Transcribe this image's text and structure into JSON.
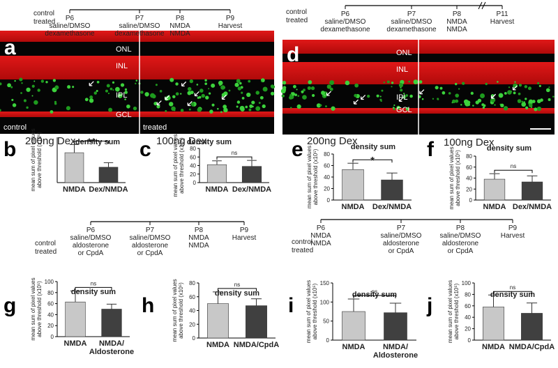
{
  "timelines": [
    {
      "groups": "control\ntreated",
      "steps": [
        "P6\nsaline/DMSO\ndexamethasone",
        "P7\nsaline/DMSO\ndexamethasone",
        "P8\nNMDA\nNMDA",
        "P9\nHarvest"
      ]
    },
    {
      "groups": "control\ntreated",
      "steps": [
        "P6\nsaline/DMSO\ndexamethasone",
        "P7\nsaline/DMSO\ndexamethasone",
        "P8\nNMDA\nNMDA",
        "P11\nHarvest"
      ]
    },
    {
      "groups": "control\ntreated",
      "steps": [
        "P6\nsaline/DMSO\naldosterone\nor CpdA",
        "P7\nsaline/DMSO\naldosterone\nor CpdA",
        "P8\nNMDA\nNMDA",
        "P9\nHarvest"
      ]
    },
    {
      "groups": "control\ntreated",
      "steps": [
        "P6\nNMDA\nNMDA",
        "P7\nsaline/DMSO\naldosterone\nor CpdA",
        "P8\nsaline/DMSO\naldosterone\nor CpdA",
        "P9\nHarvest"
      ]
    }
  ],
  "images": [
    {
      "letter": "a",
      "layers": [
        "ONL",
        "INL",
        "IPL",
        "GCL"
      ],
      "captions": [
        "control",
        "treated"
      ]
    },
    {
      "letter": "d",
      "layers": [
        "ONL",
        "INL",
        "IPL",
        "GCL"
      ]
    }
  ],
  "chart_data": [
    {
      "type": "bar",
      "letter": "b",
      "subtitle": "200ng Dex",
      "title": "density sum",
      "y_label": "mean sum of pixel values\nabove threshold (x10⁵)",
      "categories": [
        "NMDA",
        "Dex/NMDA"
      ],
      "values": [
        33,
        17
      ],
      "errors": [
        9,
        5
      ],
      "colors": [
        "#c8c8c8",
        "#404040"
      ],
      "ylim": [
        0,
        50
      ],
      "significance": "**"
    },
    {
      "type": "bar",
      "letter": "c",
      "subtitle": "100ng Dex",
      "title": "density sum",
      "y_label": "mean sum of pixel values\nabove threshold (x10⁵)",
      "categories": [
        "NMDA",
        "Dex/NMDA"
      ],
      "values": [
        42,
        38
      ],
      "errors": [
        9,
        14
      ],
      "colors": [
        "#c8c8c8",
        "#404040"
      ],
      "ylim": [
        0,
        80
      ],
      "yticks": [
        0,
        20,
        40,
        60,
        80
      ],
      "significance": "ns"
    },
    {
      "type": "bar",
      "letter": "e",
      "subtitle": "200ng Dex",
      "title": "density sum",
      "y_label": "mean sum of pixel values\nabove threshold (x10⁵)",
      "categories": [
        "NMDA",
        "Dex/NMDA"
      ],
      "values": [
        53,
        35
      ],
      "errors": [
        11,
        12
      ],
      "colors": [
        "#c8c8c8",
        "#404040"
      ],
      "ylim": [
        0,
        80
      ],
      "yticks": [
        0,
        20,
        40,
        60,
        80
      ],
      "significance": "*"
    },
    {
      "type": "bar",
      "letter": "f",
      "subtitle": "100ng Dex",
      "title": "density sum",
      "y_label": "mean sum of pixel values\nabove threshold (x10⁵)",
      "categories": [
        "NMDA",
        "Dex/NMDA"
      ],
      "values": [
        38,
        33
      ],
      "errors": [
        10,
        11
      ],
      "colors": [
        "#c8c8c8",
        "#404040"
      ],
      "ylim": [
        0,
        80
      ],
      "yticks": [
        0,
        20,
        40,
        60,
        80
      ],
      "significance": "ns"
    },
    {
      "type": "bar",
      "letter": "g",
      "title": "density sum",
      "y_label": "mean sum of pixel values\nabove threshold (x10⁵)",
      "categories": [
        "NMDA",
        "NMDA/\nAldosterone"
      ],
      "values": [
        63,
        50
      ],
      "errors": [
        20,
        9
      ],
      "colors": [
        "#c8c8c8",
        "#404040"
      ],
      "ylim": [
        0,
        100
      ],
      "yticks": [
        0,
        20,
        40,
        60,
        80,
        100
      ],
      "significance": "ns"
    },
    {
      "type": "bar",
      "letter": "h",
      "title": "density sum",
      "y_label": "mean sum of pixel values\nabove threshold (x10⁵)",
      "categories": [
        "NMDA",
        "NMDA/CpdA"
      ],
      "values": [
        50,
        47
      ],
      "errors": [
        17,
        10
      ],
      "colors": [
        "#c8c8c8",
        "#404040"
      ],
      "ylim": [
        0,
        80
      ],
      "yticks": [
        0,
        20,
        40,
        60,
        80
      ],
      "significance": "ns"
    },
    {
      "type": "bar",
      "letter": "i",
      "title": "density sum",
      "y_label": "mean sum of pixel values\nabove threshold (x10⁵)",
      "categories": [
        "NMDA",
        "NMDA/\nAldosterone"
      ],
      "values": [
        75,
        72
      ],
      "errors": [
        33,
        25
      ],
      "colors": [
        "#c8c8c8",
        "#404040"
      ],
      "ylim": [
        0,
        150
      ],
      "yticks": [
        0,
        50,
        100,
        150
      ],
      "significance": "ns"
    },
    {
      "type": "bar",
      "letter": "j",
      "title": "density sum",
      "y_label": "mean sum of pixel values\nabove threshold (x10⁵)",
      "categories": [
        "NMDA",
        "NMDA/CpdA"
      ],
      "values": [
        58,
        47
      ],
      "errors": [
        21,
        18
      ],
      "colors": [
        "#c8c8c8",
        "#404040"
      ],
      "ylim": [
        0,
        100
      ],
      "yticks": [
        0,
        20,
        40,
        60,
        80,
        100
      ],
      "significance": "ns"
    }
  ]
}
